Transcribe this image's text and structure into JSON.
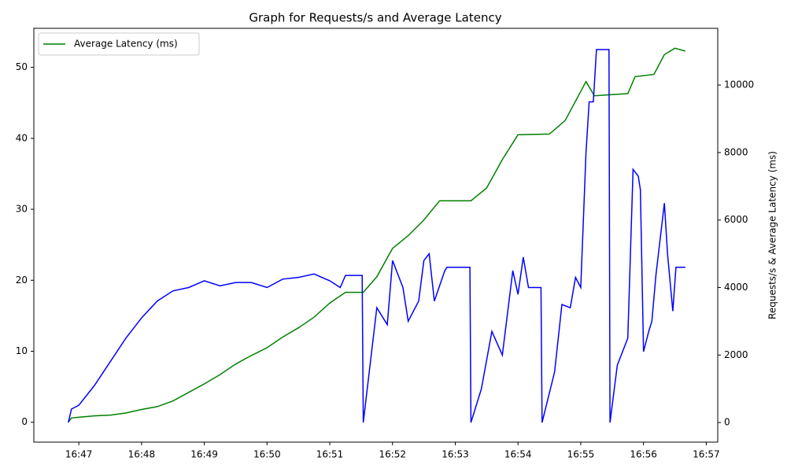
{
  "chart_data": {
    "type": "line",
    "title": "Graph for Requests/s and Average Latency",
    "y2_label": "Requests/s & Average Latency (ms)",
    "xlim": [
      "16:46:17",
      "16:57:11"
    ],
    "xticks": [
      {
        "value": "16:47:00",
        "label": "16:47"
      },
      {
        "value": "16:48:00",
        "label": "16:48"
      },
      {
        "value": "16:49:00",
        "label": "16:49"
      },
      {
        "value": "16:50:00",
        "label": "16:50"
      },
      {
        "value": "16:51:00",
        "label": "16:51"
      },
      {
        "value": "16:52:00",
        "label": "16:52"
      },
      {
        "value": "16:53:00",
        "label": "16:53"
      },
      {
        "value": "16:54:00",
        "label": "16:54"
      },
      {
        "value": "16:55:00",
        "label": "16:55"
      },
      {
        "value": "16:56:00",
        "label": "16:56"
      },
      {
        "value": "16:57:00",
        "label": "16:57"
      }
    ],
    "ylim": [
      -2.8,
      55.5
    ],
    "yticks": [
      0,
      10,
      20,
      30,
      40,
      50
    ],
    "y2lim": [
      -580,
      11680
    ],
    "y2ticks": [
      0,
      2000,
      4000,
      6000,
      8000,
      10000
    ],
    "legend": "upper left",
    "series": [
      {
        "name": "Average Latency (ms)",
        "color": "#008000",
        "legend": true,
        "x": [
          "16:46:50",
          "16:46:53",
          "16:47:00",
          "16:47:15",
          "16:47:30",
          "16:47:45",
          "16:48:00",
          "16:48:15",
          "16:48:30",
          "16:48:45",
          "16:49:00",
          "16:49:15",
          "16:49:30",
          "16:49:45",
          "16:50:00",
          "16:50:15",
          "16:50:30",
          "16:50:45",
          "16:51:00",
          "16:51:15",
          "16:51:32",
          "16:51:45",
          "16:52:00",
          "16:52:15",
          "16:52:30",
          "16:52:45",
          "16:53:15",
          "16:53:30",
          "16:53:45",
          "16:54:00",
          "16:54:30",
          "16:54:45",
          "16:55:00",
          "16:55:05",
          "16:55:13",
          "16:55:45",
          "16:55:52",
          "16:56:10",
          "16:56:20",
          "16:56:30",
          "16:56:40"
        ],
        "values": [
          0.0,
          0.6,
          0.7,
          0.9,
          1.0,
          1.3,
          1.8,
          2.2,
          3.0,
          4.2,
          5.4,
          6.7,
          8.2,
          9.4,
          10.5,
          12.0,
          13.3,
          14.8,
          16.8,
          18.3,
          18.3,
          20.5,
          24.5,
          26.3,
          28.5,
          31.2,
          31.2,
          33.0,
          37.0,
          40.5,
          40.6,
          42.5,
          46.6,
          48.0,
          46.0,
          46.3,
          48.7,
          49.0,
          51.8,
          52.7,
          52.3
        ]
      },
      {
        "name": "Requests/s",
        "color": "#0000ff",
        "axis": "y2",
        "legend": false,
        "x": [
          "16:46:50",
          "16:46:53",
          "16:47:00",
          "16:47:15",
          "16:47:30",
          "16:47:45",
          "16:48:00",
          "16:48:15",
          "16:48:30",
          "16:48:45",
          "16:49:00",
          "16:49:15",
          "16:49:30",
          "16:49:45",
          "16:50:00",
          "16:50:15",
          "16:50:30",
          "16:50:45",
          "16:51:00",
          "16:51:10",
          "16:51:15",
          "16:51:31",
          "16:51:32",
          "16:51:45",
          "16:51:55",
          "16:52:00",
          "16:52:10",
          "16:52:15",
          "16:52:25",
          "16:52:30",
          "16:52:35",
          "16:52:40",
          "16:52:50",
          "16:52:52",
          "16:53:14",
          "16:53:15",
          "16:53:25",
          "16:53:35",
          "16:53:45",
          "16:53:55",
          "16:54:00",
          "16:54:05",
          "16:54:10",
          "16:54:22",
          "16:54:23",
          "16:54:35",
          "16:54:42",
          "16:54:50",
          "16:54:55",
          "16:55:00",
          "16:55:02",
          "16:55:05",
          "16:55:08",
          "16:55:12",
          "16:55:15",
          "16:55:27",
          "16:55:28",
          "16:55:35",
          "16:55:45",
          "16:55:50",
          "16:55:55",
          "16:55:57",
          "16:56:00",
          "16:56:05",
          "16:56:08",
          "16:56:12",
          "16:56:20",
          "16:56:23",
          "16:56:28",
          "16:56:31",
          "16:56:40"
        ],
        "values": [
          0,
          400,
          510,
          1100,
          1800,
          2500,
          3100,
          3600,
          3900,
          4000,
          4200,
          4050,
          4150,
          4150,
          4000,
          4250,
          4300,
          4400,
          4200,
          4000,
          4360,
          4360,
          0,
          3400,
          2900,
          4800,
          4000,
          3000,
          3600,
          4800,
          5000,
          3600,
          4500,
          4600,
          4600,
          0,
          1000,
          2700,
          2000,
          4500,
          3800,
          4900,
          4000,
          4000,
          0,
          1500,
          3500,
          3400,
          4300,
          4000,
          5600,
          8000,
          9500,
          9500,
          11050,
          11050,
          0,
          1700,
          2500,
          7500,
          7300,
          6900,
          2100,
          2700,
          3000,
          4400,
          6500,
          5000,
          3300,
          4600,
          4600
        ]
      }
    ]
  }
}
